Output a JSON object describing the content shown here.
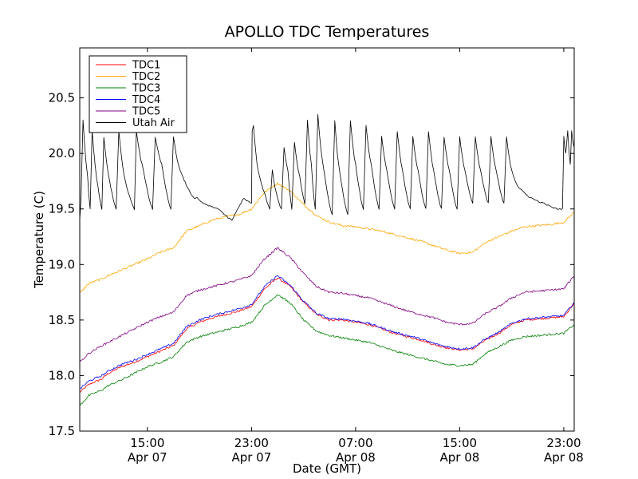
{
  "chart_data": {
    "type": "line",
    "title": "APOLLO TDC Temperatures",
    "xlabel": "Date (GMT)",
    "ylabel": "Temperature (C)",
    "x_unit": "hours since Apr 07 00:00 GMT",
    "xlim": [
      9.8,
      47.8
    ],
    "ylim": [
      17.5,
      20.95
    ],
    "yticks": [
      17.5,
      18.0,
      18.5,
      19.0,
      19.5,
      20.0,
      20.5
    ],
    "ytick_labels": [
      "17.5",
      "18.0",
      "18.5",
      "19.0",
      "19.5",
      "20.0",
      "20.5"
    ],
    "xticks": [
      {
        "x": 15,
        "time": "15:00",
        "date": "Apr 07"
      },
      {
        "x": 23,
        "time": "23:00",
        "date": "Apr 07"
      },
      {
        "x": 31,
        "time": "07:00",
        "date": "Apr 08"
      },
      {
        "x": 39,
        "time": "15:00",
        "date": "Apr 08"
      },
      {
        "x": 47,
        "time": "23:00",
        "date": "Apr 08"
      }
    ],
    "legend_position": "top-left",
    "series": [
      {
        "name": "TDC1",
        "color": "#ff0000",
        "x": [
          9.8,
          10.5,
          11.5,
          12,
          13,
          14,
          15,
          16,
          17,
          18,
          19,
          20,
          21,
          22,
          23,
          24,
          25,
          26,
          27,
          28,
          29,
          30,
          31,
          32,
          33,
          34,
          35,
          36,
          37,
          38,
          39,
          40,
          41,
          42,
          43,
          44,
          45,
          46,
          47,
          47.8
        ],
        "y": [
          17.85,
          17.92,
          17.97,
          18.02,
          18.08,
          18.12,
          18.17,
          18.22,
          18.27,
          18.42,
          18.48,
          18.52,
          18.55,
          18.58,
          18.62,
          18.78,
          18.88,
          18.8,
          18.66,
          18.55,
          18.5,
          18.5,
          18.48,
          18.46,
          18.42,
          18.38,
          18.35,
          18.32,
          18.28,
          18.25,
          18.23,
          18.24,
          18.32,
          18.38,
          18.46,
          18.5,
          18.51,
          18.52,
          18.53,
          18.65
        ]
      },
      {
        "name": "TDC2",
        "color": "#ffa500",
        "x": [
          9.8,
          10.5,
          11.5,
          12,
          13,
          14,
          15,
          16,
          17,
          18,
          19,
          20,
          21,
          22,
          23,
          24,
          25,
          26,
          27,
          28,
          29,
          30,
          31,
          32,
          33,
          34,
          35,
          36,
          37,
          38,
          39,
          40,
          41,
          42,
          43,
          44,
          45,
          46,
          47,
          47.8
        ],
        "y": [
          18.74,
          18.83,
          18.87,
          18.9,
          18.95,
          19.0,
          19.05,
          19.11,
          19.15,
          19.3,
          19.35,
          19.4,
          19.43,
          19.45,
          19.5,
          19.65,
          19.73,
          19.66,
          19.54,
          19.44,
          19.38,
          19.35,
          19.34,
          19.32,
          19.3,
          19.27,
          19.24,
          19.21,
          19.17,
          19.13,
          19.1,
          19.11,
          19.2,
          19.25,
          19.3,
          19.34,
          19.35,
          19.36,
          19.38,
          19.47
        ]
      },
      {
        "name": "TDC3",
        "color": "#008000",
        "x": [
          9.8,
          10.5,
          11.5,
          12,
          13,
          14,
          15,
          16,
          17,
          18,
          19,
          20,
          21,
          22,
          23,
          24,
          25,
          26,
          27,
          28,
          29,
          30,
          31,
          32,
          33,
          34,
          35,
          36,
          37,
          38,
          39,
          40,
          41,
          42,
          43,
          44,
          45,
          46,
          47,
          47.8
        ],
        "y": [
          17.73,
          17.82,
          17.87,
          17.91,
          17.96,
          18.02,
          18.08,
          18.12,
          18.17,
          18.3,
          18.35,
          18.38,
          18.41,
          18.44,
          18.48,
          18.63,
          18.73,
          18.65,
          18.5,
          18.4,
          18.36,
          18.34,
          18.32,
          18.3,
          18.26,
          18.22,
          18.19,
          18.16,
          18.13,
          18.1,
          18.09,
          18.1,
          18.2,
          18.26,
          18.32,
          18.35,
          18.36,
          18.37,
          18.38,
          18.46
        ]
      },
      {
        "name": "TDC4",
        "color": "#0000ff",
        "x": [
          9.8,
          10.5,
          11.5,
          12,
          13,
          14,
          15,
          16,
          17,
          18,
          19,
          20,
          21,
          22,
          23,
          24,
          25,
          26,
          27,
          28,
          29,
          30,
          31,
          32,
          33,
          34,
          35,
          36,
          37,
          38,
          39,
          40,
          41,
          42,
          43,
          44,
          45,
          46,
          47,
          47.8
        ],
        "y": [
          17.88,
          17.95,
          18.0,
          18.04,
          18.1,
          18.14,
          18.19,
          18.24,
          18.29,
          18.44,
          18.5,
          18.54,
          18.57,
          18.6,
          18.64,
          18.8,
          18.9,
          18.81,
          18.67,
          18.56,
          18.51,
          18.51,
          18.49,
          18.47,
          18.43,
          18.39,
          18.36,
          18.33,
          18.29,
          18.26,
          18.24,
          18.25,
          18.33,
          18.39,
          18.47,
          18.51,
          18.52,
          18.53,
          18.54,
          18.66
        ]
      },
      {
        "name": "TDC5",
        "color": "#800080",
        "x": [
          9.8,
          10.5,
          11.5,
          12,
          13,
          14,
          15,
          16,
          17,
          18,
          19,
          20,
          21,
          22,
          23,
          24,
          25,
          26,
          27,
          28,
          29,
          30,
          31,
          32,
          33,
          34,
          35,
          36,
          37,
          38,
          39,
          40,
          41,
          42,
          43,
          44,
          45,
          46,
          47,
          47.8
        ],
        "y": [
          18.12,
          18.2,
          18.27,
          18.3,
          18.36,
          18.42,
          18.48,
          18.53,
          18.57,
          18.72,
          18.77,
          18.8,
          18.83,
          18.86,
          18.9,
          19.05,
          19.15,
          19.06,
          18.92,
          18.8,
          18.75,
          18.74,
          18.72,
          18.7,
          18.66,
          18.62,
          18.58,
          18.55,
          18.52,
          18.48,
          18.46,
          18.47,
          18.56,
          18.62,
          18.7,
          18.75,
          18.76,
          18.77,
          18.78,
          18.9
        ]
      },
      {
        "name": "Utah Air",
        "color": "#000000",
        "x": [
          9.8,
          9.9,
          10.05,
          10.4,
          10.6,
          10.75,
          11.2,
          11.5,
          11.65,
          12.1,
          12.6,
          12.8,
          13.3,
          14.0,
          14.15,
          14.6,
          15.4,
          15.6,
          16.1,
          16.8,
          17.0,
          17.5,
          18.6,
          18.8,
          19.3,
          20.5,
          21.5,
          22.4,
          23.0,
          23.05,
          23.15,
          23.5,
          24.0,
          24.4,
          24.6,
          24.9,
          25.3,
          25.5,
          25.8,
          26.1,
          26.3,
          26.7,
          27.1,
          27.3,
          27.6,
          27.9,
          28.1,
          28.5,
          29.2,
          29.4,
          29.7,
          30.4,
          30.6,
          31.0,
          31.6,
          31.8,
          32.2,
          32.8,
          33.0,
          33.4,
          34.0,
          34.2,
          34.6,
          35.2,
          35.4,
          35.8,
          36.4,
          36.6,
          37.0,
          37.6,
          37.8,
          38.2,
          38.8,
          39.0,
          39.4,
          40.0,
          40.2,
          40.6,
          41.2,
          41.4,
          41.8,
          42.4,
          42.6,
          43.0,
          43.5,
          44.5,
          45.5,
          46.5,
          46.9,
          47.0,
          47.15,
          47.3,
          47.5,
          47.6,
          47.8
        ],
        "y": [
          19.4,
          19.6,
          20.3,
          19.8,
          19.5,
          20.2,
          19.7,
          19.5,
          20.15,
          19.75,
          19.5,
          20.2,
          19.75,
          19.5,
          20.2,
          19.9,
          19.5,
          20.15,
          19.9,
          19.5,
          20.15,
          19.85,
          19.6,
          19.6,
          19.55,
          19.5,
          19.4,
          19.6,
          19.55,
          20.2,
          20.25,
          19.85,
          19.65,
          19.5,
          19.85,
          19.65,
          19.5,
          20.05,
          19.85,
          19.5,
          20.1,
          19.8,
          19.55,
          20.3,
          19.9,
          19.5,
          20.35,
          19.9,
          19.45,
          20.3,
          19.9,
          19.45,
          20.3,
          19.9,
          19.5,
          20.25,
          19.9,
          19.5,
          20.15,
          19.85,
          19.5,
          20.2,
          19.85,
          19.5,
          20.15,
          19.85,
          19.5,
          20.2,
          19.85,
          19.5,
          20.15,
          19.85,
          19.5,
          20.15,
          19.85,
          19.55,
          20.15,
          19.85,
          19.55,
          20.15,
          19.85,
          19.55,
          20.15,
          19.85,
          19.7,
          19.6,
          19.55,
          19.5,
          19.5,
          20.15,
          20.0,
          20.2,
          19.9,
          20.2,
          20.05
        ]
      }
    ]
  }
}
